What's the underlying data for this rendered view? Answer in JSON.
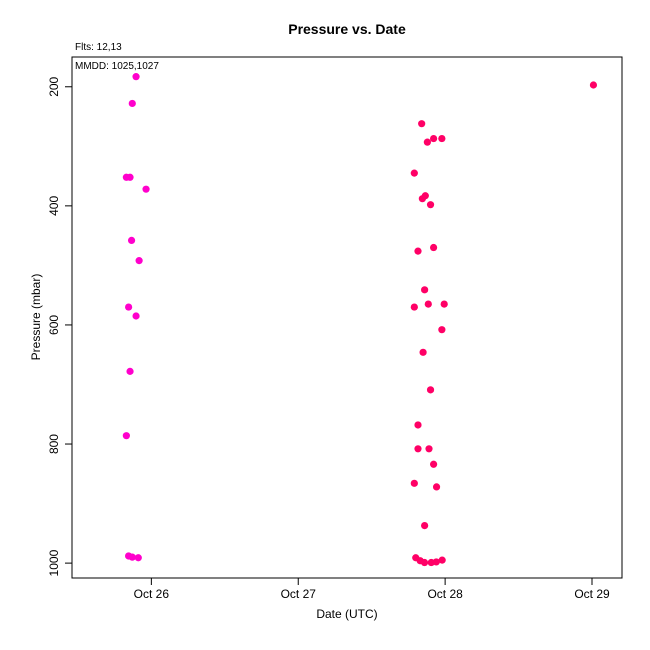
{
  "chart_data": {
    "type": "scatter",
    "title": "Pressure  vs. Date",
    "xlabel": "Date (UTC)",
    "ylabel": "Pressure (mbar)",
    "annotations": [
      "Flts: 12,13",
      "MMDD: 1025,1027"
    ],
    "x_ticks": [
      {
        "value": "2023-10-26",
        "label": "Oct 26"
      },
      {
        "value": "2023-10-27",
        "label": "Oct 27"
      },
      {
        "value": "2023-10-28",
        "label": "Oct 28"
      },
      {
        "value": "2023-10-29",
        "label": "Oct 29"
      }
    ],
    "y_ticks": [
      200,
      400,
      600,
      800,
      1000
    ],
    "xlim": [
      "2023-10-25T11:02",
      "2023-10-29T04:54"
    ],
    "ylim": [
      150,
      1025
    ],
    "y_inverted": true,
    "grid": false,
    "series": [
      {
        "color": "#ff00cc",
        "points": [
          {
            "x": "2023-10-25T21:30",
            "y": 183
          },
          {
            "x": "2023-10-25T20:53",
            "y": 228
          },
          {
            "x": "2023-10-25T19:55",
            "y": 352
          },
          {
            "x": "2023-10-25T20:31",
            "y": 352
          },
          {
            "x": "2023-10-25T23:08",
            "y": 372
          },
          {
            "x": "2023-10-25T20:46",
            "y": 458
          },
          {
            "x": "2023-10-25T22:00",
            "y": 492
          },
          {
            "x": "2023-10-25T20:17",
            "y": 570
          },
          {
            "x": "2023-10-25T21:30",
            "y": 585
          },
          {
            "x": "2023-10-25T20:31",
            "y": 678
          },
          {
            "x": "2023-10-25T19:55",
            "y": 786
          },
          {
            "x": "2023-10-25T20:17",
            "y": 988
          },
          {
            "x": "2023-10-25T20:53",
            "y": 990
          },
          {
            "x": "2023-10-25T21:52",
            "y": 991
          }
        ]
      },
      {
        "color": "#ff0066",
        "points": [
          {
            "x": "2023-10-27T20:10",
            "y": 262
          },
          {
            "x": "2023-10-27T22:07",
            "y": 287
          },
          {
            "x": "2023-10-27T23:28",
            "y": 287
          },
          {
            "x": "2023-10-27T21:06",
            "y": 293
          },
          {
            "x": "2023-10-27T18:58",
            "y": 345
          },
          {
            "x": "2023-10-27T20:46",
            "y": 383
          },
          {
            "x": "2023-10-27T20:17",
            "y": 388
          },
          {
            "x": "2023-10-27T21:37",
            "y": 398
          },
          {
            "x": "2023-10-27T22:07",
            "y": 470
          },
          {
            "x": "2023-10-27T19:34",
            "y": 476
          },
          {
            "x": "2023-10-27T20:39",
            "y": 541
          },
          {
            "x": "2023-10-27T21:15",
            "y": 565
          },
          {
            "x": "2023-10-27T23:51",
            "y": 565
          },
          {
            "x": "2023-10-27T18:58",
            "y": 570
          },
          {
            "x": "2023-10-27T23:28",
            "y": 608
          },
          {
            "x": "2023-10-27T20:24",
            "y": 646
          },
          {
            "x": "2023-10-27T21:37",
            "y": 709
          },
          {
            "x": "2023-10-27T19:34",
            "y": 768
          },
          {
            "x": "2023-10-27T19:34",
            "y": 808
          },
          {
            "x": "2023-10-27T21:22",
            "y": 808
          },
          {
            "x": "2023-10-27T22:07",
            "y": 834
          },
          {
            "x": "2023-10-27T18:58",
            "y": 866
          },
          {
            "x": "2023-10-27T22:36",
            "y": 872
          },
          {
            "x": "2023-10-27T20:39",
            "y": 937
          },
          {
            "x": "2023-10-27T19:12",
            "y": 991
          },
          {
            "x": "2023-10-27T19:55",
            "y": 996
          },
          {
            "x": "2023-10-27T20:38",
            "y": 999
          },
          {
            "x": "2023-10-27T21:44",
            "y": 999
          },
          {
            "x": "2023-10-27T22:33",
            "y": 998
          },
          {
            "x": "2023-10-27T23:31",
            "y": 995
          },
          {
            "x": "2023-10-29T00:14",
            "y": 197
          }
        ]
      }
    ]
  }
}
